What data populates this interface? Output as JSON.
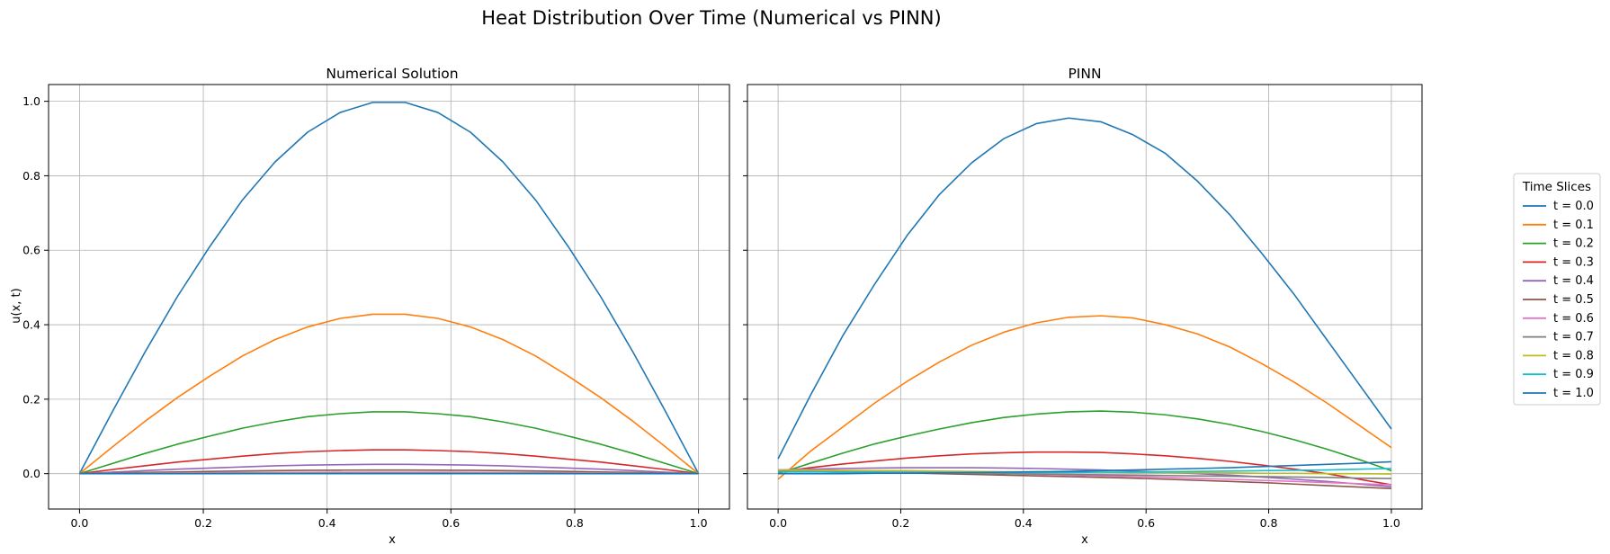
{
  "figure": {
    "suptitle": "Heat Distribution Over Time (Numerical vs PINN)",
    "legend_title": "Time Slices"
  },
  "chart_data": [
    {
      "type": "line",
      "title": "Numerical Solution",
      "xlabel": "x",
      "ylabel": "u(x, t)",
      "xlim": [
        -0.05,
        1.05
      ],
      "ylim": [
        -0.095,
        1.045
      ],
      "xticks": [
        "0.0",
        "0.2",
        "0.4",
        "0.6",
        "0.8",
        "1.0"
      ],
      "yticks": [
        "0.0",
        "0.2",
        "0.4",
        "0.6",
        "0.8",
        "1.0"
      ],
      "grid": true,
      "x": [
        0,
        0.0526,
        0.1053,
        0.1579,
        0.2105,
        0.2632,
        0.3158,
        0.3684,
        0.4211,
        0.4737,
        0.5263,
        0.5789,
        0.6316,
        0.6842,
        0.7368,
        0.7895,
        0.8421,
        0.8947,
        0.9474,
        1.0
      ],
      "series": [
        {
          "name": "t = 0.0",
          "color": "#1f77b4",
          "values": [
            0,
            0.165,
            0.325,
            0.475,
            0.61,
            0.735,
            0.837,
            0.917,
            0.97,
            0.997,
            0.997,
            0.97,
            0.917,
            0.837,
            0.735,
            0.61,
            0.475,
            0.325,
            0.165,
            0
          ]
        },
        {
          "name": "t = 0.1",
          "color": "#ff7f0e",
          "values": [
            0,
            0.071,
            0.14,
            0.204,
            0.262,
            0.316,
            0.36,
            0.394,
            0.417,
            0.428,
            0.428,
            0.417,
            0.394,
            0.36,
            0.316,
            0.262,
            0.204,
            0.14,
            0.071,
            0
          ]
        },
        {
          "name": "t = 0.2",
          "color": "#2ca02c",
          "values": [
            0,
            0.027,
            0.054,
            0.079,
            0.101,
            0.122,
            0.139,
            0.153,
            0.161,
            0.166,
            0.166,
            0.161,
            0.153,
            0.139,
            0.122,
            0.101,
            0.079,
            0.054,
            0.027,
            0
          ]
        },
        {
          "name": "t = 0.3",
          "color": "#d62728",
          "values": [
            0,
            0.011,
            0.021,
            0.031,
            0.039,
            0.047,
            0.054,
            0.059,
            0.062,
            0.064,
            0.064,
            0.062,
            0.059,
            0.054,
            0.047,
            0.039,
            0.031,
            0.021,
            0.011,
            0
          ]
        },
        {
          "name": "t = 0.4",
          "color": "#9467bd",
          "values": [
            0,
            0.004,
            0.008,
            0.012,
            0.015,
            0.018,
            0.021,
            0.023,
            0.024,
            0.025,
            0.025,
            0.024,
            0.023,
            0.021,
            0.018,
            0.015,
            0.012,
            0.008,
            0.004,
            0
          ]
        },
        {
          "name": "t = 0.5",
          "color": "#8c564b",
          "values": [
            0,
            0.0016,
            0.0032,
            0.0046,
            0.006,
            0.0071,
            0.0081,
            0.0089,
            0.0094,
            0.0097,
            0.0097,
            0.0094,
            0.0089,
            0.0081,
            0.0071,
            0.006,
            0.0046,
            0.0032,
            0.0016,
            0
          ]
        },
        {
          "name": "t = 0.6",
          "color": "#e377c2",
          "values": [
            0,
            0.0006,
            0.0012,
            0.0018,
            0.0023,
            0.0028,
            0.0031,
            0.0034,
            0.0036,
            0.0037,
            0.0037,
            0.0036,
            0.0034,
            0.0031,
            0.0028,
            0.0023,
            0.0018,
            0.0012,
            0.0006,
            0
          ]
        },
        {
          "name": "t = 0.7",
          "color": "#7f7f7f",
          "values": [
            0,
            0.0002,
            0.0005,
            0.0007,
            0.0009,
            0.0011,
            0.0012,
            0.0013,
            0.0014,
            0.0014,
            0.0014,
            0.0014,
            0.0013,
            0.0012,
            0.0011,
            0.0009,
            0.0007,
            0.0005,
            0.0002,
            0
          ]
        },
        {
          "name": "t = 0.8",
          "color": "#bcbd22",
          "values": [
            0,
            0.0001,
            0.0002,
            0.0003,
            0.0003,
            0.0004,
            0.0005,
            0.0005,
            0.0005,
            0.0005,
            0.0005,
            0.0005,
            0.0005,
            0.0005,
            0.0004,
            0.0003,
            0.0003,
            0.0002,
            0.0001,
            0
          ]
        },
        {
          "name": "t = 0.9",
          "color": "#17becf",
          "values": [
            0,
            0,
            0.0001,
            0.0001,
            0.0001,
            0.0002,
            0.0002,
            0.0002,
            0.0002,
            0.0002,
            0.0002,
            0.0002,
            0.0002,
            0.0002,
            0.0002,
            0.0001,
            0.0001,
            0.0001,
            0,
            0
          ]
        },
        {
          "name": "t = 1.0",
          "color": "#1f77b4",
          "values": [
            0,
            0,
            0,
            0,
            0,
            0.0001,
            0.0001,
            0.0001,
            0.0001,
            0.0001,
            0.0001,
            0.0001,
            0.0001,
            0.0001,
            0.0001,
            0,
            0,
            0,
            0,
            0
          ]
        }
      ]
    },
    {
      "type": "line",
      "title": "PINN",
      "xlabel": "x",
      "ylabel": "",
      "xlim": [
        -0.05,
        1.05
      ],
      "ylim": [
        -0.095,
        1.045
      ],
      "xticks": [
        "0.0",
        "0.2",
        "0.4",
        "0.6",
        "0.8",
        "1.0"
      ],
      "yticks": [
        "0.0",
        "0.2",
        "0.4",
        "0.6",
        "0.8",
        "1.0"
      ],
      "grid": true,
      "x": [
        0,
        0.0526,
        0.1053,
        0.1579,
        0.2105,
        0.2632,
        0.3158,
        0.3684,
        0.4211,
        0.4737,
        0.5263,
        0.5789,
        0.6316,
        0.6842,
        0.7368,
        0.7895,
        0.8421,
        0.8947,
        0.9474,
        1.0
      ],
      "series": [
        {
          "name": "t = 0.0",
          "color": "#1f77b4",
          "values": [
            0.04,
            0.21,
            0.37,
            0.51,
            0.64,
            0.75,
            0.835,
            0.9,
            0.94,
            0.955,
            0.945,
            0.91,
            0.86,
            0.785,
            0.695,
            0.59,
            0.48,
            0.36,
            0.24,
            0.12
          ]
        },
        {
          "name": "t = 0.1",
          "color": "#ff7f0e",
          "values": [
            -0.015,
            0.06,
            0.125,
            0.19,
            0.248,
            0.3,
            0.345,
            0.38,
            0.405,
            0.42,
            0.424,
            0.418,
            0.4,
            0.375,
            0.34,
            0.295,
            0.245,
            0.19,
            0.13,
            0.07
          ]
        },
        {
          "name": "t = 0.2",
          "color": "#2ca02c",
          "values": [
            0.0,
            0.028,
            0.055,
            0.08,
            0.101,
            0.12,
            0.137,
            0.151,
            0.16,
            0.166,
            0.168,
            0.165,
            0.158,
            0.147,
            0.132,
            0.113,
            0.091,
            0.066,
            0.038,
            0.008
          ]
        },
        {
          "name": "t = 0.3",
          "color": "#d62728",
          "values": [
            0.005,
            0.016,
            0.026,
            0.034,
            0.042,
            0.048,
            0.053,
            0.056,
            0.058,
            0.058,
            0.057,
            0.053,
            0.048,
            0.041,
            0.033,
            0.023,
            0.012,
            0.0,
            -0.015,
            -0.03
          ]
        },
        {
          "name": "t = 0.4",
          "color": "#9467bd",
          "values": [
            0.01,
            0.012,
            0.014,
            0.015,
            0.016,
            0.016,
            0.016,
            0.015,
            0.014,
            0.012,
            0.01,
            0.007,
            0.004,
            0.0,
            -0.004,
            -0.009,
            -0.015,
            -0.021,
            -0.028,
            -0.035
          ]
        },
        {
          "name": "t = 0.5",
          "color": "#8c564b",
          "values": [
            0.005,
            0.005,
            0.004,
            0.003,
            0.002,
            0.0,
            -0.002,
            -0.004,
            -0.006,
            -0.008,
            -0.01,
            -0.012,
            -0.015,
            -0.018,
            -0.021,
            -0.024,
            -0.028,
            -0.032,
            -0.036,
            -0.04
          ]
        },
        {
          "name": "t = 0.6",
          "color": "#e377c2",
          "values": [
            0.01,
            0.009,
            0.008,
            0.007,
            0.006,
            0.004,
            0.002,
            0.0,
            -0.002,
            -0.004,
            -0.006,
            -0.008,
            -0.01,
            -0.013,
            -0.015,
            -0.018,
            -0.021,
            -0.024,
            -0.027,
            -0.03
          ]
        },
        {
          "name": "t = 0.7",
          "color": "#7f7f7f",
          "values": [
            0.005,
            0.005,
            0.004,
            0.004,
            0.003,
            0.002,
            0.001,
            0.0,
            -0.001,
            -0.002,
            -0.003,
            -0.004,
            -0.005,
            -0.006,
            -0.007,
            -0.008,
            -0.009,
            -0.01,
            -0.012,
            -0.013
          ]
        },
        {
          "name": "t = 0.8",
          "color": "#bcbd22",
          "values": [
            0.01,
            0.01,
            0.009,
            0.008,
            0.008,
            0.007,
            0.006,
            0.005,
            0.005,
            0.004,
            0.004,
            0.003,
            0.003,
            0.002,
            0.002,
            0.001,
            0.001,
            0.0,
            0.0,
            -0.001
          ]
        },
        {
          "name": "t = 0.9",
          "color": "#17becf",
          "values": [
            0.005,
            0.005,
            0.004,
            0.004,
            0.003,
            0.003,
            0.003,
            0.003,
            0.003,
            0.003,
            0.004,
            0.004,
            0.005,
            0.006,
            0.007,
            0.008,
            0.009,
            0.01,
            0.012,
            0.014
          ]
        },
        {
          "name": "t = 1.0",
          "color": "#1f77b4",
          "values": [
            0.0,
            0.0,
            0.0,
            0.001,
            0.001,
            0.002,
            0.003,
            0.004,
            0.005,
            0.006,
            0.008,
            0.01,
            0.012,
            0.014,
            0.016,
            0.019,
            0.022,
            0.025,
            0.028,
            0.032
          ]
        }
      ]
    }
  ]
}
